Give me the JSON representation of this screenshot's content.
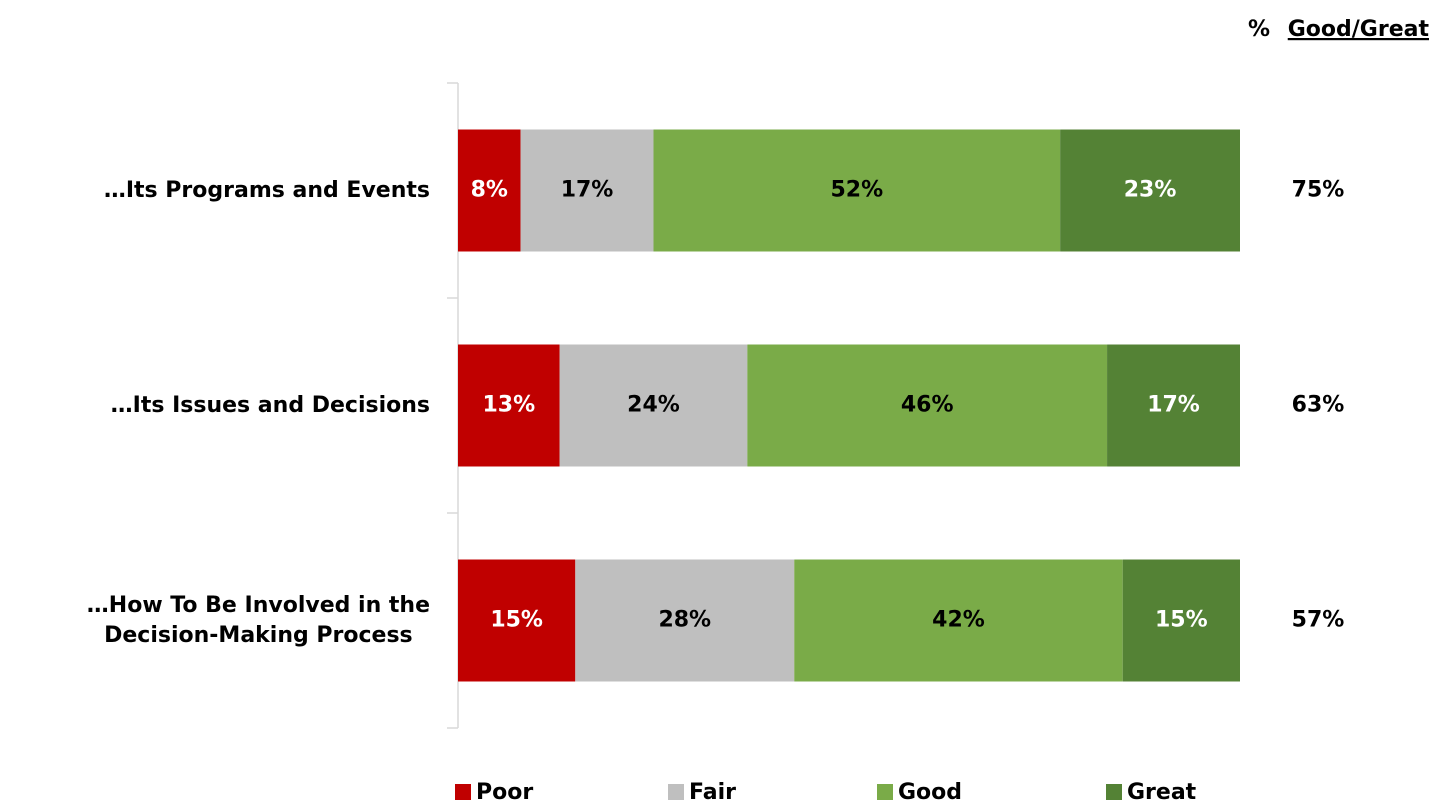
{
  "chart_data": {
    "type": "stacked_bar_horizontal",
    "total_header": {
      "prefix": "%",
      "label": "Good/Great"
    },
    "categories": [
      "…Its Programs and Events",
      "…Its Issues and Decisions",
      "…How To Be Involved in the\nDecision-Making Process"
    ],
    "xlim": [
      0,
      100
    ],
    "series": [
      {
        "name": "Poor",
        "color": "#c00000",
        "label_color": "#ffffff",
        "values": [
          8,
          13,
          15
        ],
        "value_labels": [
          "8%",
          "13%",
          "15%"
        ]
      },
      {
        "name": "Fair",
        "color": "#bfbfbf",
        "label_color": "#000000",
        "values": [
          17,
          24,
          28
        ],
        "value_labels": [
          "17%",
          "24%",
          "28%"
        ]
      },
      {
        "name": "Good",
        "color": "#7aab48",
        "label_color": "#000000",
        "values": [
          52,
          46,
          42
        ],
        "value_labels": [
          "52%",
          "46%",
          "42%"
        ]
      },
      {
        "name": "Great",
        "color": "#548235",
        "label_color": "#ffffff",
        "values": [
          23,
          17,
          15
        ],
        "value_labels": [
          "23%",
          "17%",
          "15%"
        ]
      }
    ],
    "totals": {
      "values": [
        75,
        63,
        57
      ],
      "value_labels": [
        "75%",
        "63%",
        "57%"
      ]
    },
    "legend": "bottom"
  }
}
